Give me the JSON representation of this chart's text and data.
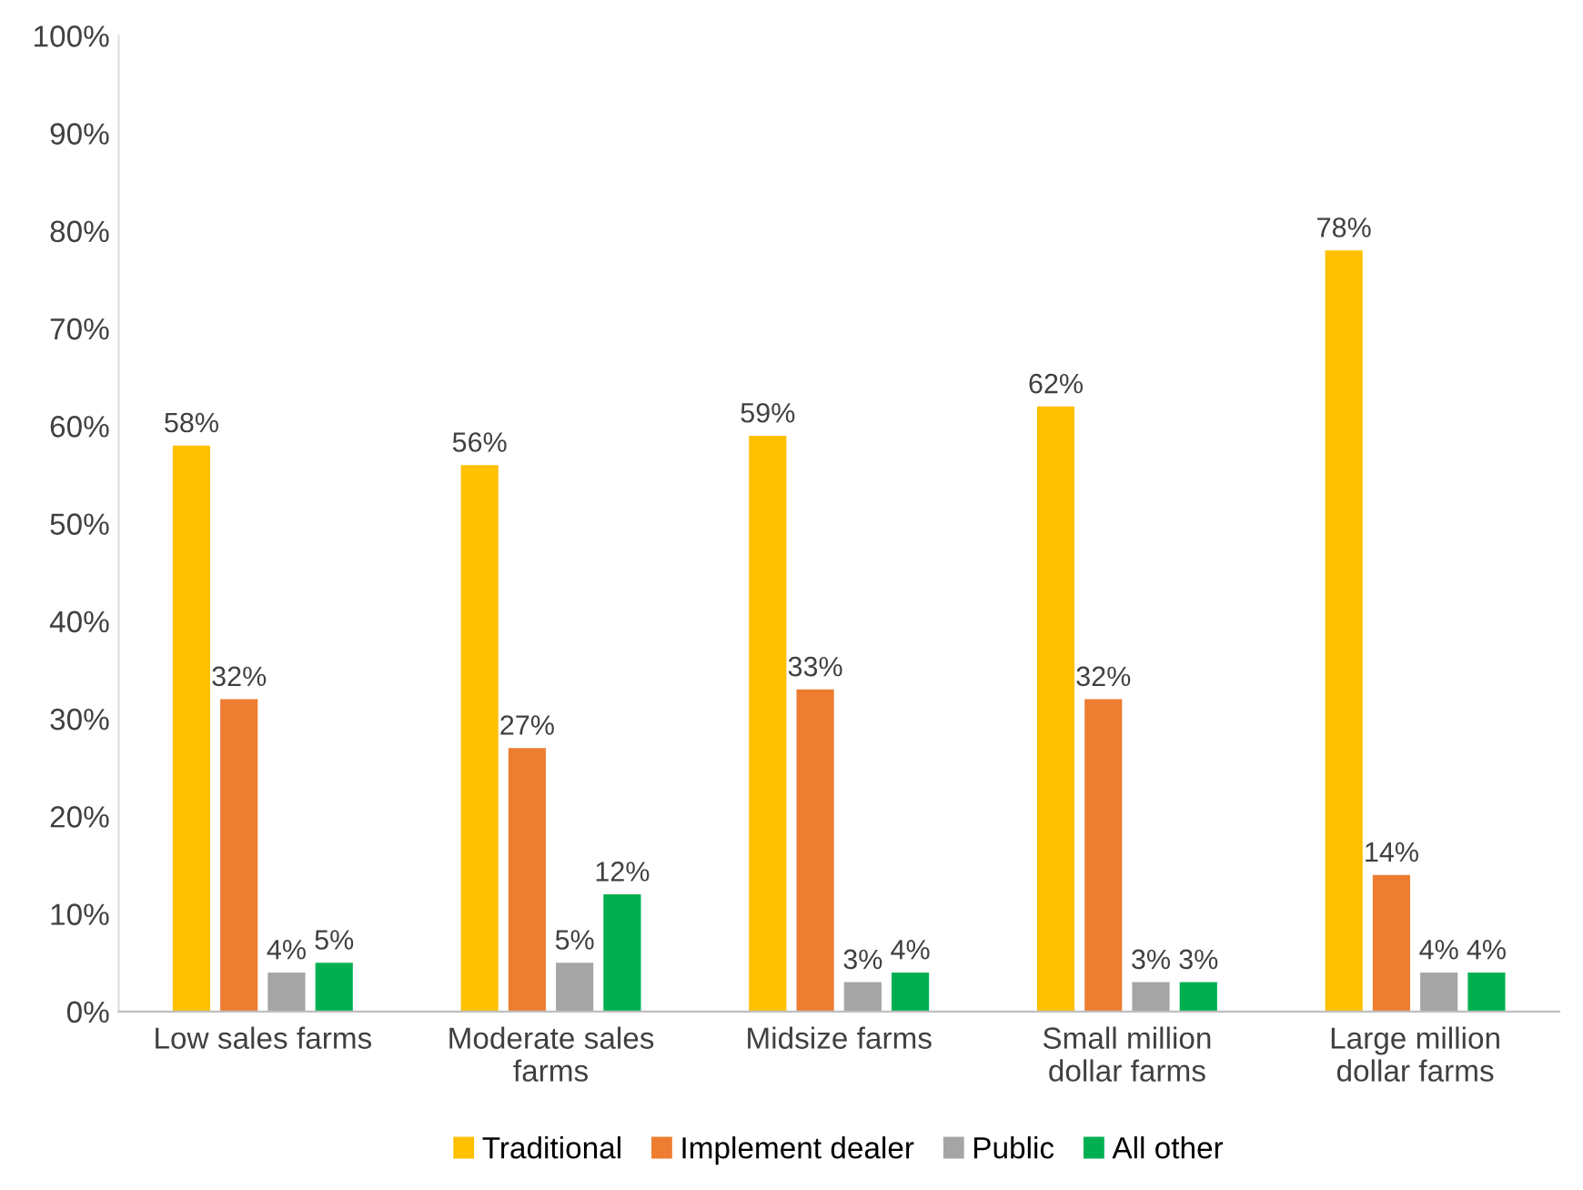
{
  "chart_data": {
    "type": "bar",
    "categories": [
      "Low sales farms",
      "Moderate sales\nfarms",
      "Midsize farms",
      "Small million\ndollar farms",
      "Large million\ndollar farms"
    ],
    "series": [
      {
        "name": "Traditional",
        "color": "#ffc000",
        "values": [
          58,
          56,
          59,
          62,
          78
        ],
        "value_labels": [
          "58%",
          "56%",
          "59%",
          "62%",
          "78%"
        ]
      },
      {
        "name": "Implement dealer",
        "color": "#ed7d31",
        "values": [
          32,
          27,
          33,
          32,
          14
        ],
        "value_labels": [
          "32%",
          "27%",
          "33%",
          "32%",
          "14%"
        ]
      },
      {
        "name": "Public",
        "color": "#a5a5a5",
        "values": [
          4,
          5,
          3,
          3,
          4
        ],
        "value_labels": [
          "4%",
          "5%",
          "3%",
          "3%",
          "4%"
        ]
      },
      {
        "name": "All other",
        "color": "#00b050",
        "values": [
          5,
          12,
          4,
          3,
          4
        ],
        "value_labels": [
          "5%",
          "12%",
          "4%",
          "3%",
          "4%"
        ]
      }
    ],
    "ylim": [
      0,
      100
    ],
    "yticks": [
      {
        "value": 0,
        "label": "0%"
      },
      {
        "value": 10,
        "label": "10%"
      },
      {
        "value": 20,
        "label": "20%"
      },
      {
        "value": 30,
        "label": "30%"
      },
      {
        "value": 40,
        "label": "40%"
      },
      {
        "value": 50,
        "label": "50%"
      },
      {
        "value": 60,
        "label": "60%"
      },
      {
        "value": 70,
        "label": "70%"
      },
      {
        "value": 80,
        "label": "80%"
      },
      {
        "value": 90,
        "label": "90%"
      },
      {
        "value": 100,
        "label": "100%"
      }
    ],
    "grid": false,
    "legend": "bottom"
  }
}
